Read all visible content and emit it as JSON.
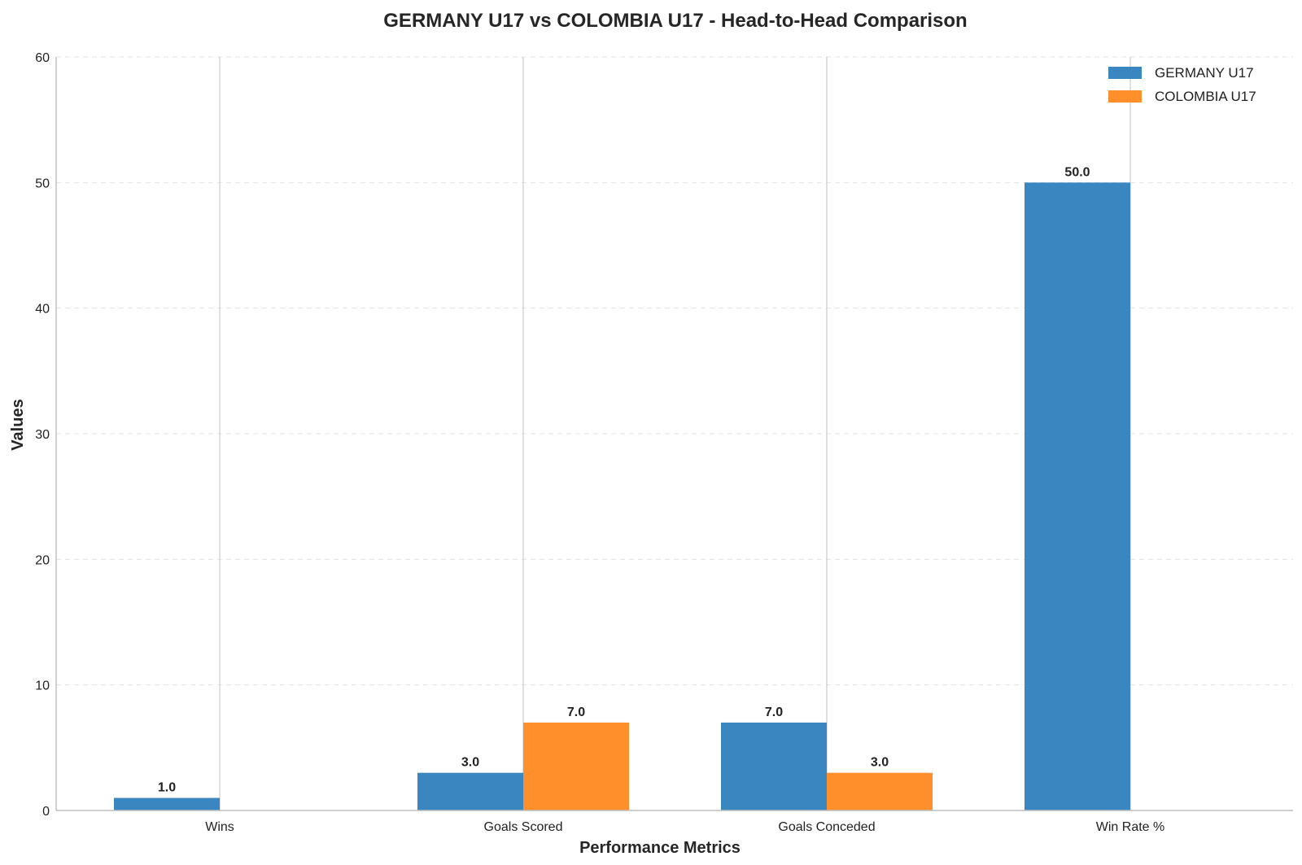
{
  "chart_data": {
    "type": "bar",
    "title": "GERMANY U17 vs COLOMBIA U17 - Head-to-Head Comparison",
    "xlabel": "Performance Metrics",
    "ylabel": "Values",
    "categories": [
      "Wins",
      "Goals Scored",
      "Goals Conceded",
      "Win Rate %"
    ],
    "series": [
      {
        "name": "GERMANY U17",
        "color": "#3a86c0",
        "values": [
          1.0,
          3.0,
          7.0,
          50.0
        ],
        "labels": [
          "1.0",
          "3.0",
          "7.0",
          "50.0"
        ]
      },
      {
        "name": "COLOMBIA U17",
        "color": "#ff8f2b",
        "values": [
          0.0,
          7.0,
          3.0,
          0.0
        ],
        "labels": [
          "",
          "7.0",
          "3.0",
          ""
        ]
      }
    ],
    "ylim": [
      0,
      60
    ],
    "yticks": [
      0,
      10,
      20,
      30,
      40,
      50,
      60
    ],
    "ytick_labels": [
      "0",
      "10",
      "20",
      "30",
      "40",
      "50",
      "60"
    ],
    "grid": "y-dashed",
    "legend": "top-right"
  }
}
